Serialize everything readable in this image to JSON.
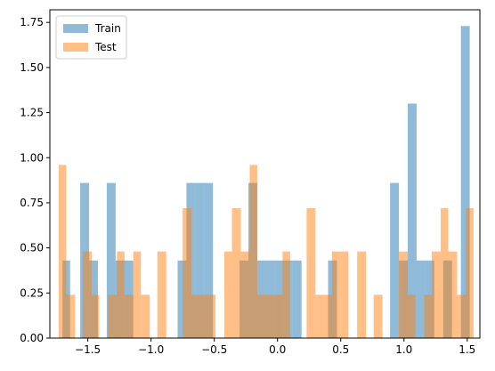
{
  "chart_data": {
    "type": "bar",
    "title": "",
    "xlabel": "",
    "ylabel": "",
    "xlim": [
      -1.8,
      1.6
    ],
    "ylim": [
      0,
      1.82
    ],
    "xticks": [
      -1.5,
      -1.0,
      -0.5,
      0.0,
      0.5,
      1.0,
      1.5
    ],
    "xtick_labels": [
      "−1.5",
      "−1.0",
      "−0.5",
      "0.0",
      "0.5",
      "1.0",
      "1.5"
    ],
    "yticks": [
      0,
      0.25,
      0.5,
      0.75,
      1.0,
      1.25,
      1.5,
      1.75
    ],
    "ytick_labels": [
      "0.00",
      "0.25",
      "0.50",
      "0.75",
      "1.00",
      "1.25",
      "1.50",
      "1.75"
    ],
    "grid": false,
    "legend_position": "upper left",
    "series": [
      {
        "name": "Train",
        "color": "#1f77b4",
        "opacity": 0.5,
        "bins": [
          {
            "x0": -1.7,
            "x1": -1.64,
            "value": 0.43
          },
          {
            "x0": -1.56,
            "x1": -1.49,
            "value": 0.86
          },
          {
            "x0": -1.49,
            "x1": -1.42,
            "value": 0.43
          },
          {
            "x0": -1.35,
            "x1": -1.28,
            "value": 0.86
          },
          {
            "x0": -1.28,
            "x1": -1.21,
            "value": 0.43
          },
          {
            "x0": -1.21,
            "x1": -1.14,
            "value": 0.43
          },
          {
            "x0": -0.79,
            "x1": -0.72,
            "value": 0.43
          },
          {
            "x0": -0.72,
            "x1": -0.65,
            "value": 0.86
          },
          {
            "x0": -0.65,
            "x1": -0.58,
            "value": 0.86
          },
          {
            "x0": -0.58,
            "x1": -0.51,
            "value": 0.86
          },
          {
            "x0": -0.3,
            "x1": -0.23,
            "value": 0.43
          },
          {
            "x0": -0.23,
            "x1": -0.16,
            "value": 0.86
          },
          {
            "x0": -0.16,
            "x1": -0.09,
            "value": 0.43
          },
          {
            "x0": -0.09,
            "x1": -0.02,
            "value": 0.43
          },
          {
            "x0": -0.02,
            "x1": 0.05,
            "value": 0.43
          },
          {
            "x0": 0.05,
            "x1": 0.12,
            "value": 0.43
          },
          {
            "x0": 0.12,
            "x1": 0.19,
            "value": 0.43
          },
          {
            "x0": 0.4,
            "x1": 0.47,
            "value": 0.43
          },
          {
            "x0": 0.89,
            "x1": 0.96,
            "value": 0.86
          },
          {
            "x0": 0.96,
            "x1": 1.03,
            "value": 0.43
          },
          {
            "x0": 1.03,
            "x1": 1.1,
            "value": 1.3
          },
          {
            "x0": 1.1,
            "x1": 1.17,
            "value": 0.43
          },
          {
            "x0": 1.17,
            "x1": 1.24,
            "value": 0.43
          },
          {
            "x0": 1.31,
            "x1": 1.38,
            "value": 0.43
          },
          {
            "x0": 1.45,
            "x1": 1.52,
            "value": 1.73
          }
        ]
      },
      {
        "name": "Test",
        "color": "#ff7f0e",
        "opacity": 0.5,
        "bins": [
          {
            "x0": -1.73,
            "x1": -1.67,
            "value": 0.96
          },
          {
            "x0": -1.67,
            "x1": -1.6,
            "value": 0.24
          },
          {
            "x0": -1.54,
            "x1": -1.47,
            "value": 0.48
          },
          {
            "x0": -1.47,
            "x1": -1.41,
            "value": 0.24
          },
          {
            "x0": -1.34,
            "x1": -1.27,
            "value": 0.24
          },
          {
            "x0": -1.27,
            "x1": -1.21,
            "value": 0.48
          },
          {
            "x0": -1.21,
            "x1": -1.14,
            "value": 0.24
          },
          {
            "x0": -1.14,
            "x1": -1.08,
            "value": 0.48
          },
          {
            "x0": -1.08,
            "x1": -1.01,
            "value": 0.24
          },
          {
            "x0": -0.95,
            "x1": -0.88,
            "value": 0.48
          },
          {
            "x0": -0.75,
            "x1": -0.68,
            "value": 0.72
          },
          {
            "x0": -0.68,
            "x1": -0.62,
            "value": 0.24
          },
          {
            "x0": -0.62,
            "x1": -0.55,
            "value": 0.24
          },
          {
            "x0": -0.55,
            "x1": -0.49,
            "value": 0.24
          },
          {
            "x0": -0.42,
            "x1": -0.36,
            "value": 0.48
          },
          {
            "x0": -0.36,
            "x1": -0.29,
            "value": 0.72
          },
          {
            "x0": -0.29,
            "x1": -0.22,
            "value": 0.48
          },
          {
            "x0": -0.22,
            "x1": -0.16,
            "value": 0.96
          },
          {
            "x0": -0.16,
            "x1": -0.09,
            "value": 0.24
          },
          {
            "x0": -0.09,
            "x1": -0.03,
            "value": 0.24
          },
          {
            "x0": -0.03,
            "x1": 0.04,
            "value": 0.24
          },
          {
            "x0": 0.04,
            "x1": 0.1,
            "value": 0.48
          },
          {
            "x0": 0.23,
            "x1": 0.3,
            "value": 0.72
          },
          {
            "x0": 0.3,
            "x1": 0.37,
            "value": 0.24
          },
          {
            "x0": 0.37,
            "x1": 0.43,
            "value": 0.24
          },
          {
            "x0": 0.43,
            "x1": 0.5,
            "value": 0.48
          },
          {
            "x0": 0.5,
            "x1": 0.56,
            "value": 0.48
          },
          {
            "x0": 0.63,
            "x1": 0.7,
            "value": 0.48
          },
          {
            "x0": 0.76,
            "x1": 0.83,
            "value": 0.24
          },
          {
            "x0": 0.96,
            "x1": 1.03,
            "value": 0.48
          },
          {
            "x0": 1.03,
            "x1": 1.09,
            "value": 0.24
          },
          {
            "x0": 1.16,
            "x1": 1.22,
            "value": 0.24
          },
          {
            "x0": 1.22,
            "x1": 1.29,
            "value": 0.48
          },
          {
            "x0": 1.29,
            "x1": 1.35,
            "value": 0.72
          },
          {
            "x0": 1.35,
            "x1": 1.42,
            "value": 0.48
          },
          {
            "x0": 1.42,
            "x1": 1.49,
            "value": 0.24
          },
          {
            "x0": 1.49,
            "x1": 1.55,
            "value": 0.72
          }
        ]
      }
    ]
  }
}
